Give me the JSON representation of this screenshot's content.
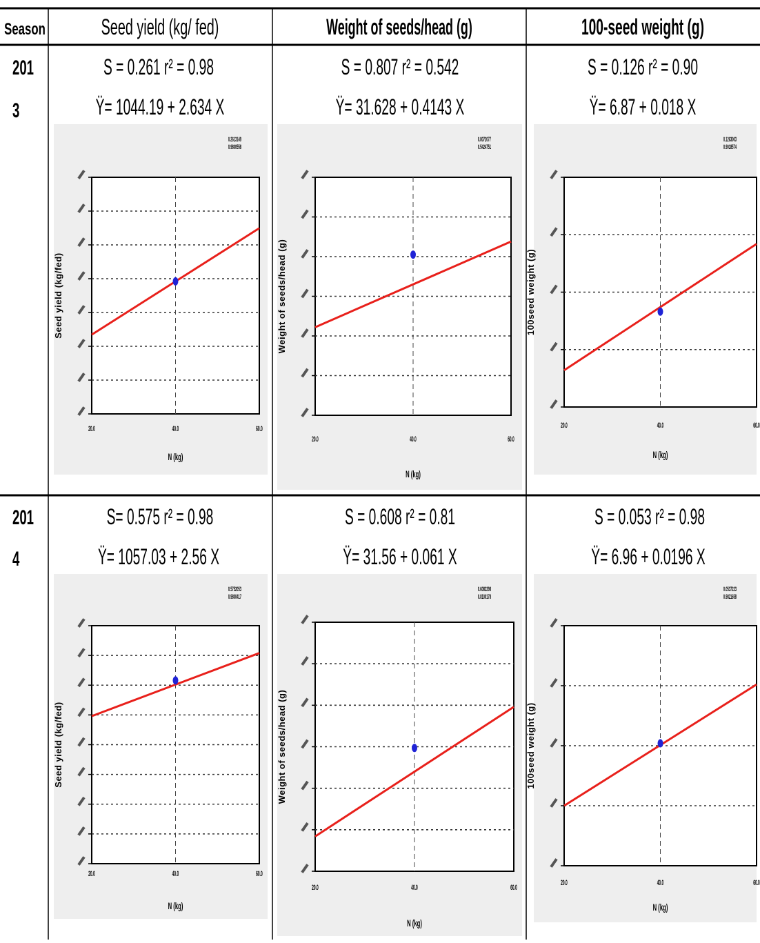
{
  "table": {
    "headers": [
      "Season",
      "Seed yield (kg/ fed)",
      "Weight of seeds/head (g)",
      "100-seed weight (g)"
    ],
    "rows": [
      {
        "season_line1": "201",
        "season_line2": "3",
        "cells": [
          {
            "stats": "S = 0.261  r² = 0.98",
            "equation": "Ÿ= 1044.19 + 2.634 X"
          },
          {
            "stats": "S = 0.807  r² = 0.542",
            "equation": "Ÿ= 31.628 + 0.4143 X"
          },
          {
            "stats": "S = 0.126  r² = 0.90",
            "equation": "Ÿ= 6.87 + 0.018 X"
          }
        ]
      },
      {
        "season_line1": "201",
        "season_line2": "4",
        "cells": [
          {
            "stats": "S= 0.575    r² = 0.98",
            "equation": "Ÿ= 1057.03 + 2.56 X"
          },
          {
            "stats": "S = 0.608  r² = 0.81",
            "equation": "Ÿ= 31.56 + 0.061 X"
          },
          {
            "stats": "S = 0.053  r² = 0.98",
            "equation": "Ÿ= 6.96 + 0.0196 X"
          }
        ]
      }
    ]
  },
  "chart_data": [
    {
      "type": "scatter",
      "xlabel": "N (kg)",
      "ylabel": "Seed yield (kg/fed)",
      "x_ticks": [
        "20.0",
        "40.0",
        "60.0"
      ],
      "xlim": [
        20,
        60
      ],
      "ylim": [
        0,
        1
      ],
      "y_ticks": [
        "",
        "",
        "",
        "",
        "",
        "",
        "",
        ""
      ],
      "legend": [
        "0.2613149",
        "0.9800558"
      ],
      "line": {
        "x": [
          20,
          60
        ],
        "y": [
          0.335,
          0.785
        ]
      },
      "points": [
        {
          "x": 40,
          "y": 0.56
        }
      ]
    },
    {
      "type": "scatter",
      "xlabel": "N (kg)",
      "ylabel": "Weight of seeds/head (g)",
      "x_ticks": [
        "20.0",
        "40.0",
        "60.0"
      ],
      "xlim": [
        20,
        60
      ],
      "ylim": [
        0,
        1
      ],
      "y_ticks": [
        "",
        "",
        "",
        "",
        "",
        "",
        ""
      ],
      "legend": [
        "0.8072077",
        "0.5424751"
      ],
      "line": {
        "x": [
          20,
          60
        ],
        "y": [
          0.37,
          0.73
        ]
      },
      "points": [
        {
          "x": 40,
          "y": 0.675
        }
      ]
    },
    {
      "type": "scatter",
      "xlabel": "N (kg)",
      "ylabel": "100seed weight (g)",
      "x_ticks": [
        "20.0",
        "40.0",
        "60.0"
      ],
      "xlim": [
        20,
        60
      ],
      "ylim": [
        0,
        1
      ],
      "y_ticks": [
        "",
        "",
        "",
        "",
        ""
      ],
      "legend": [
        "0.1263003",
        "0.9018574"
      ],
      "line": {
        "x": [
          20,
          60
        ],
        "y": [
          0.16,
          0.71
        ]
      },
      "points": [
        {
          "x": 40,
          "y": 0.415
        }
      ]
    },
    {
      "type": "scatter",
      "xlabel": "N (kg)",
      "ylabel": "Seed yield (kg/fed)",
      "x_ticks": [
        "20.0",
        "40.0",
        "60.0"
      ],
      "xlim": [
        20,
        60
      ],
      "ylim": [
        0,
        1
      ],
      "y_ticks": [
        "",
        "",
        "",
        "",
        "",
        "",
        "",
        "",
        ""
      ],
      "legend": [
        "0.5752053",
        "0.9800417"
      ],
      "line": {
        "x": [
          20,
          60
        ],
        "y": [
          0.62,
          0.885
        ]
      },
      "points": [
        {
          "x": 40,
          "y": 0.77
        }
      ]
    },
    {
      "type": "scatter",
      "xlabel": "N (kg)",
      "ylabel": "Weight of seeds/head (g)",
      "x_ticks": [
        "20.0",
        "40.0",
        "60.0"
      ],
      "xlim": [
        20,
        60
      ],
      "ylim": [
        0,
        1
      ],
      "y_ticks": [
        "",
        "",
        "",
        "",
        "",
        "",
        ""
      ],
      "legend": [
        "0.6082298",
        "0.8100178"
      ],
      "line": {
        "x": [
          20,
          60
        ],
        "y": [
          0.14,
          0.66
        ]
      },
      "points": [
        {
          "x": 40,
          "y": 0.495
        }
      ]
    },
    {
      "type": "scatter",
      "xlabel": "N (kg)",
      "ylabel": "100seed weight (g)",
      "x_ticks": [
        "20.0",
        "40.0",
        "60.0"
      ],
      "xlim": [
        20,
        60
      ],
      "ylim": [
        0,
        1
      ],
      "y_ticks": [
        "",
        "",
        "",
        "",
        ""
      ],
      "legend": [
        "0.0537223",
        "0.9821658"
      ],
      "line": {
        "x": [
          20,
          60
        ],
        "y": [
          0.25,
          0.755
        ]
      },
      "points": [
        {
          "x": 40,
          "y": 0.51
        }
      ]
    }
  ],
  "colors": {
    "line": "#e8201b",
    "point": "#1f23d6",
    "panel_bg": "#eeeeee",
    "grid": "#333333"
  }
}
